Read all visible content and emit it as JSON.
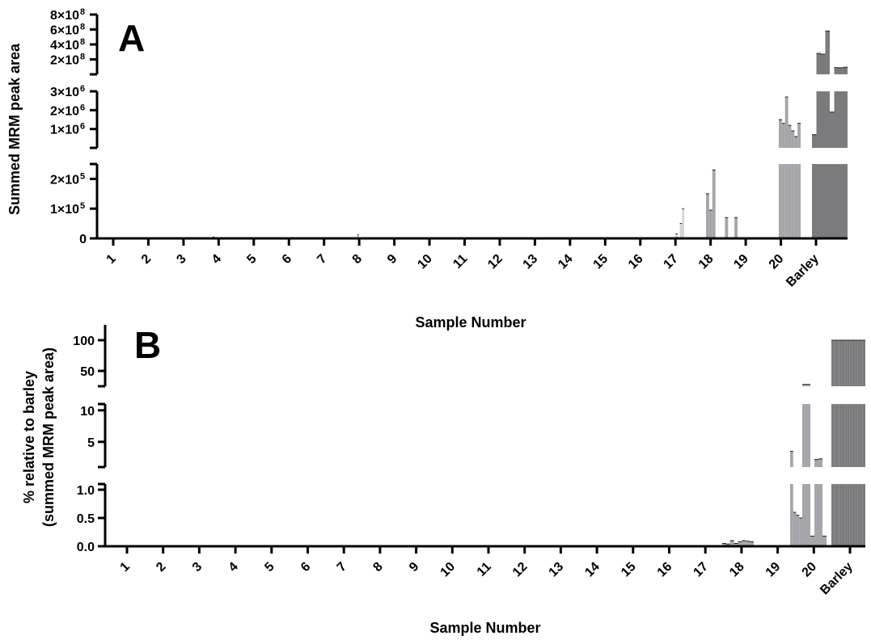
{
  "chart_data": [
    {
      "panel_label": "A",
      "type": "bar",
      "y_scale": "broken",
      "xlabel": "Sample Number",
      "ylabel": "Summed MRM peak area",
      "categories": [
        "1",
        "2",
        "3",
        "4",
        "5",
        "6",
        "7",
        "8",
        "9",
        "10",
        "11",
        "12",
        "13",
        "14",
        "15",
        "16",
        "17",
        "18",
        "19",
        "20",
        "Barley"
      ],
      "y_segments": [
        {
          "range": [
            0,
            250000
          ],
          "ticks": [
            {
              "v": 0,
              "m": "0",
              "e": ""
            },
            {
              "v": 100000,
              "m": "1×10",
              "e": "5"
            },
            {
              "v": 200000,
              "m": "2×10",
              "e": "5"
            }
          ]
        },
        {
          "range": [
            0,
            3000000
          ],
          "ticks": [
            {
              "v": 1000000,
              "m": "1×10",
              "e": "6"
            },
            {
              "v": 2000000,
              "m": "2×10",
              "e": "6"
            },
            {
              "v": 3000000,
              "m": "3×10",
              "e": "6"
            }
          ]
        },
        {
          "range": [
            0,
            800000000
          ],
          "ticks": [
            {
              "v": 200000000,
              "m": "2×10",
              "e": "8"
            },
            {
              "v": 400000000,
              "m": "4×10",
              "e": "8"
            },
            {
              "v": 600000000,
              "m": "6×10",
              "e": "8"
            },
            {
              "v": 800000000,
              "m": "8×10",
              "e": "8"
            }
          ]
        }
      ],
      "bar_colors": {
        "samples": "#a5a5aa",
        "sample_17": "#d4d4d6",
        "barley": "#7b7b7e"
      },
      "groups": [
        {
          "category": "4",
          "values": [
            0,
            0,
            0,
            5000,
            0,
            0
          ]
        },
        {
          "category": "8",
          "values": [
            0,
            0,
            0,
            12000,
            0,
            0
          ]
        },
        {
          "category": "17",
          "values": [
            0,
            0,
            15000,
            0,
            50000,
            100000
          ]
        },
        {
          "category": "18",
          "values": [
            150000,
            95000,
            230000,
            0,
            0,
            0,
            70000,
            0,
            0,
            70000
          ]
        },
        {
          "category": "19",
          "values": [
            0,
            0,
            0,
            0,
            0,
            0,
            15000
          ]
        },
        {
          "category": "20",
          "values": [
            1500000,
            1300000,
            2700000,
            1200000,
            900000,
            600000,
            1300000
          ]
        },
        {
          "category": "Barley",
          "values": [
            700000,
            280000000,
            270000000,
            580000000,
            1900000,
            90000000,
            88000000,
            95000000
          ]
        }
      ]
    },
    {
      "panel_label": "B",
      "type": "bar",
      "y_scale": "broken",
      "xlabel": "Sample Number",
      "ylabel": [
        "% relative to barley",
        "(summed MRM peak area)"
      ],
      "categories": [
        "1",
        "2",
        "3",
        "4",
        "5",
        "6",
        "7",
        "8",
        "9",
        "10",
        "11",
        "12",
        "13",
        "14",
        "15",
        "16",
        "17",
        "18",
        "19",
        "20",
        "Barley"
      ],
      "y_segments": [
        {
          "range": [
            0,
            1.1
          ],
          "ticks": [
            {
              "v": 0,
              "m": "0.0",
              "e": ""
            },
            {
              "v": 0.5,
              "m": "0.5",
              "e": ""
            },
            {
              "v": 1.0,
              "m": "1.0",
              "e": ""
            }
          ]
        },
        {
          "range": [
            1,
            11
          ],
          "ticks": [
            {
              "v": 5,
              "m": "5",
              "e": ""
            },
            {
              "v": 10,
              "m": "10",
              "e": ""
            }
          ]
        },
        {
          "range": [
            25,
            125
          ],
          "ticks": [
            {
              "v": 50,
              "m": "50",
              "e": ""
            },
            {
              "v": 100,
              "m": "100",
              "e": ""
            }
          ]
        }
      ],
      "bar_colors": {
        "samples": "#a5a5aa",
        "barley": "#7b7b7e"
      },
      "groups": [
        {
          "category": "18",
          "values": [
            0.05,
            0.04,
            0.1,
            0.05,
            0.08,
            0.1,
            0.09,
            0.08
          ]
        },
        {
          "category": "19",
          "values": [
            3.5,
            0.6,
            0.55,
            0.5
          ]
        },
        {
          "category": "20",
          "values": [
            28,
            28,
            0.18,
            2.2,
            2.3,
            0.18
          ]
        },
        {
          "category": "Barley",
          "values": [
            100,
            100,
            100,
            100,
            100,
            100,
            100,
            100,
            100,
            100,
            100,
            100,
            100
          ]
        }
      ]
    }
  ]
}
